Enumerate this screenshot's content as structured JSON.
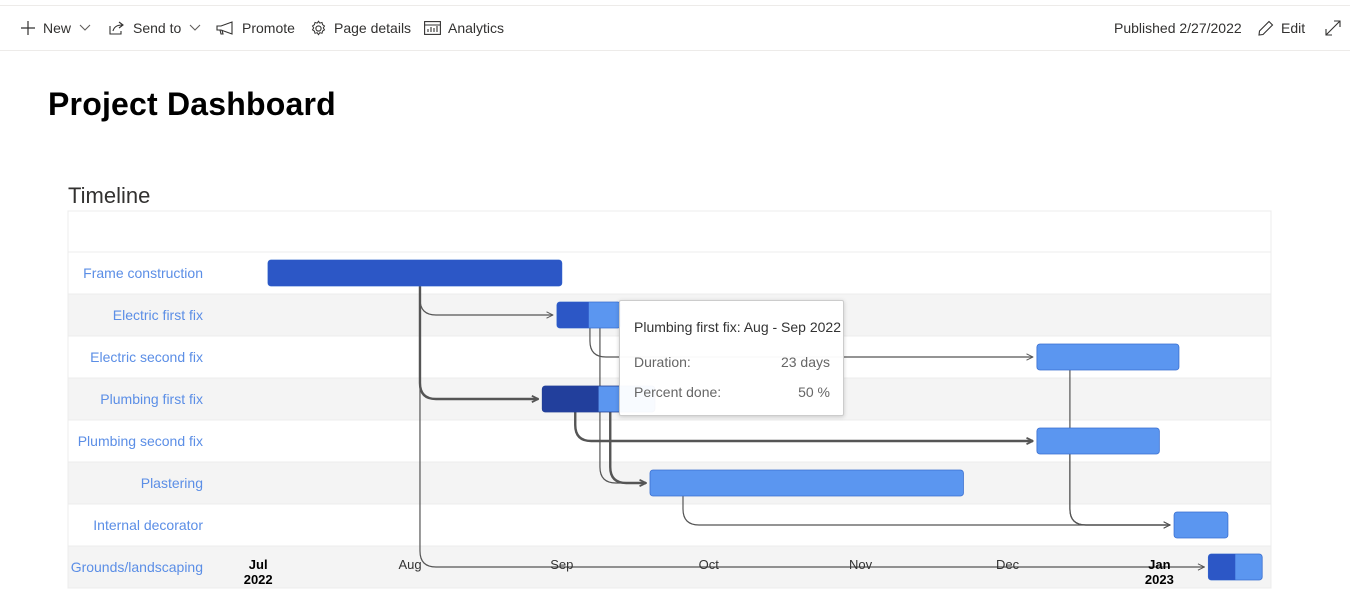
{
  "toolbar": {
    "new_label": "New",
    "send_to_label": "Send to",
    "promote_label": "Promote",
    "page_details_label": "Page details",
    "analytics_label": "Analytics",
    "published_label": "Published 2/27/2022",
    "edit_label": "Edit",
    "icons": [
      "plus-icon",
      "chevron-down-icon",
      "share-icon",
      "megaphone-icon",
      "gear-icon",
      "analytics-icon",
      "pencil-icon",
      "expand-icon"
    ]
  },
  "page": {
    "title": "Project Dashboard",
    "section_title": "Timeline"
  },
  "chart_data": {
    "type": "gantt",
    "title": "",
    "colors": {
      "bar": "#5b96f0",
      "completed": "#2c57c6",
      "completed_selected": "#223f9c",
      "row_alt": "#f4f4f4",
      "task_label": "#5b8ee6",
      "connector": "#555555"
    },
    "x_axis": {
      "start": "2022-06-23",
      "end": "2023-01-24",
      "ticks": [
        {
          "date": "2022-07-01",
          "label": "Jul",
          "year": "2022"
        },
        {
          "date": "2022-08-01",
          "label": "Aug",
          "year": ""
        },
        {
          "date": "2022-09-01",
          "label": "Sep",
          "year": ""
        },
        {
          "date": "2022-10-01",
          "label": "Oct",
          "year": ""
        },
        {
          "date": "2022-11-01",
          "label": "Nov",
          "year": ""
        },
        {
          "date": "2022-12-01",
          "label": "Dec",
          "year": ""
        },
        {
          "date": "2023-01-01",
          "label": "Jan",
          "year": "2023"
        }
      ]
    },
    "tasks": [
      {
        "name": "Frame construction",
        "start": "2022-07-03",
        "end": "2022-09-01",
        "completed": 1.0
      },
      {
        "name": "Electric first fix",
        "start": "2022-08-31",
        "end": "2022-09-13",
        "completed": 0.5
      },
      {
        "name": "Electric second fix",
        "start": "2022-12-07",
        "end": "2023-01-05",
        "completed": 0
      },
      {
        "name": "Plumbing first fix",
        "start": "2022-08-28",
        "end": "2022-09-20",
        "completed": 0.5,
        "selected": true
      },
      {
        "name": "Plumbing second fix",
        "start": "2022-12-07",
        "end": "2023-01-01",
        "completed": 0
      },
      {
        "name": "Plastering",
        "start": "2022-09-19",
        "end": "2022-11-22",
        "completed": 0
      },
      {
        "name": "Internal decorator",
        "start": "2023-01-04",
        "end": "2023-01-15",
        "completed": 0
      },
      {
        "name": "Grounds/landscaping",
        "start": "2023-01-11",
        "end": "2023-01-22",
        "completed": 0.5
      }
    ],
    "dependencies": [
      {
        "from": 0,
        "to": 1,
        "bold": false
      },
      {
        "from": 0,
        "to": 3,
        "bold": true
      },
      {
        "from": 0,
        "to": 7,
        "bold": false
      },
      {
        "from": 1,
        "to": 2,
        "bold": false
      },
      {
        "from": 1,
        "to": 5,
        "bold": false
      },
      {
        "from": 3,
        "to": 4,
        "bold": true
      },
      {
        "from": 3,
        "to": 5,
        "bold": true
      },
      {
        "from": 2,
        "to": 6,
        "bold": false
      },
      {
        "from": 4,
        "to": 6,
        "bold": false
      },
      {
        "from": 5,
        "to": 6,
        "bold": false
      }
    ],
    "tooltip": {
      "title": "Plumbing first fix: Aug - Sep 2022",
      "duration_label": "Duration:",
      "duration_value": "23 days",
      "percent_label": "Percent done:",
      "percent_value": "50 %"
    }
  }
}
